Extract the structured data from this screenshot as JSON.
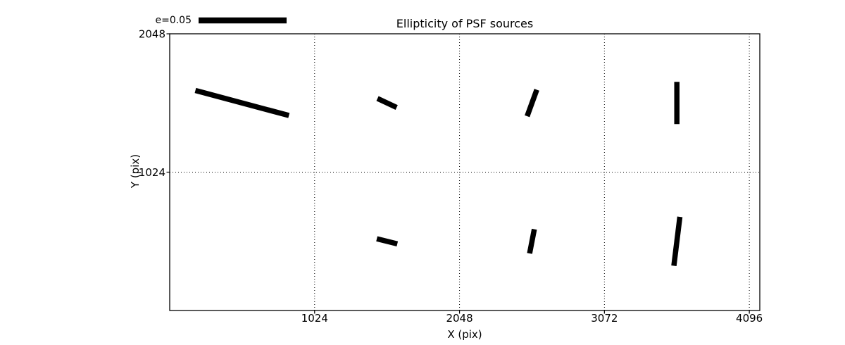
{
  "chart_data": {
    "type": "scatter",
    "subtype": "ellipticity-whisker-map",
    "title": "Ellipticity of PSF sources",
    "xlabel": "X (pix)",
    "ylabel": "Y (pix)",
    "xlim": [
      0,
      4170
    ],
    "ylim": [
      0,
      2048
    ],
    "x_ticks": [
      "1024",
      "2048",
      "3072",
      "4096"
    ],
    "x_tick_values": [
      1024,
      2048,
      3072,
      4096
    ],
    "y_ticks": [
      "1024",
      "2048"
    ],
    "y_tick_values": [
      1024,
      2048
    ],
    "grid": "dotted",
    "legend": {
      "label": "e=0.05",
      "e": 0.05,
      "position": "top-left"
    },
    "points": [
      {
        "x": 512,
        "y": 1536,
        "e": 0.055,
        "angle_deg": -15
      },
      {
        "x": 1536,
        "y": 1536,
        "e": 0.012,
        "angle_deg": -25
      },
      {
        "x": 2560,
        "y": 1536,
        "e": 0.016,
        "angle_deg": 70
      },
      {
        "x": 3584,
        "y": 1536,
        "e": 0.024,
        "angle_deg": 90
      },
      {
        "x": 1536,
        "y": 512,
        "e": 0.012,
        "angle_deg": -14
      },
      {
        "x": 2560,
        "y": 512,
        "e": 0.014,
        "angle_deg": 79
      },
      {
        "x": 3584,
        "y": 512,
        "e": 0.028,
        "angle_deg": 83
      }
    ],
    "colors": {
      "foreground": "#000000",
      "background": "#ffffff"
    }
  }
}
